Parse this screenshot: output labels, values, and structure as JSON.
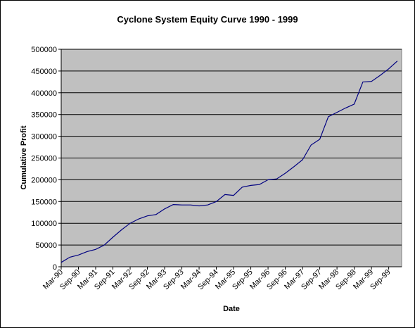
{
  "chart_data": {
    "type": "line",
    "title": "Cyclone System Equity Curve 1990 - 1999",
    "xlabel": "Date",
    "ylabel": "Cumulative Profit",
    "ylim": [
      0,
      500000
    ],
    "yticks": [
      0,
      50000,
      100000,
      150000,
      200000,
      250000,
      300000,
      350000,
      400000,
      450000,
      500000
    ],
    "xtick_labels": [
      "Mar-90",
      "Sep-90",
      "Mar-91",
      "Sep-91",
      "Mar-92",
      "Sep-92",
      "Mar-93",
      "Sep-93",
      "Mar-94",
      "Sep-94",
      "Mar-95",
      "Sep-95",
      "Mar-96",
      "Sep-96",
      "Mar-97",
      "Sep-97",
      "Mar-98",
      "Sep-98",
      "Mar-99",
      "Sep-99"
    ],
    "grid": true,
    "legend": "none",
    "colors": {
      "plot_bg": "#c0c0c0",
      "line": "#000080",
      "grid": "#000000"
    },
    "series": [
      {
        "points": [
          [
            "1990-03",
            10000
          ],
          [
            "1990-06",
            22000
          ],
          [
            "1990-09",
            27000
          ],
          [
            "1990-12",
            35000
          ],
          [
            "1991-03",
            40000
          ],
          [
            "1991-06",
            50000
          ],
          [
            "1991-09",
            68000
          ],
          [
            "1991-12",
            85000
          ],
          [
            "1992-03",
            100000
          ],
          [
            "1992-06",
            110000
          ],
          [
            "1992-09",
            117000
          ],
          [
            "1992-12",
            120000
          ],
          [
            "1993-03",
            133000
          ],
          [
            "1993-06",
            143000
          ],
          [
            "1993-09",
            142000
          ],
          [
            "1993-12",
            142000
          ],
          [
            "1994-03",
            140000
          ],
          [
            "1994-06",
            142000
          ],
          [
            "1994-09",
            150000
          ],
          [
            "1994-12",
            166000
          ],
          [
            "1995-03",
            164000
          ],
          [
            "1995-06",
            183000
          ],
          [
            "1995-09",
            187000
          ],
          [
            "1995-12",
            189000
          ],
          [
            "1996-03",
            200000
          ],
          [
            "1996-06",
            202000
          ],
          [
            "1996-09",
            215000
          ],
          [
            "1996-12",
            230000
          ],
          [
            "1997-03",
            246000
          ],
          [
            "1997-06",
            280000
          ],
          [
            "1997-09",
            293000
          ],
          [
            "1997-12",
            345000
          ],
          [
            "1998-03",
            355000
          ],
          [
            "1998-06",
            365000
          ],
          [
            "1998-09",
            374000
          ],
          [
            "1998-12",
            425000
          ],
          [
            "1999-03",
            426000
          ],
          [
            "1999-06",
            440000
          ],
          [
            "1999-09",
            455000
          ],
          [
            "1999-12",
            473000
          ]
        ]
      }
    ]
  }
}
